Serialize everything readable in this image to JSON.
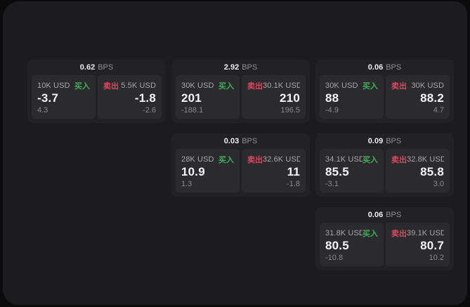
{
  "labels": {
    "bps": "BPS",
    "buy": "买入",
    "sell": "卖出"
  },
  "colors": {
    "buy": "#3cae5c",
    "sell": "#dd4760",
    "window_bg": "#1c1c1e",
    "card_bg": "#222224",
    "panel_bg": "#2b2b2d"
  },
  "cards": [
    {
      "bps": "0.62",
      "buy": {
        "amount": "10K USD",
        "value": "-3.7",
        "sub": "4.3"
      },
      "sell": {
        "amount": "5.5K USD",
        "value": "-1.8",
        "sub": "-2.6"
      }
    },
    {
      "bps": "2.92",
      "buy": {
        "amount": "30K USD",
        "value": "201",
        "sub": "-188.1"
      },
      "sell": {
        "amount": "30.1K USD",
        "value": "210",
        "sub": "196.5"
      }
    },
    {
      "bps": "0.03",
      "buy": {
        "amount": "28K USD",
        "value": "10.9",
        "sub": "1.3"
      },
      "sell": {
        "amount": "32.6K USD",
        "value": "11",
        "sub": "-1.8"
      }
    },
    {
      "bps": "0.06",
      "buy": {
        "amount": "30K USD",
        "value": "88",
        "sub": "-4.9"
      },
      "sell": {
        "amount": "30K USD",
        "value": "88.2",
        "sub": "4.7"
      }
    },
    {
      "bps": "0.09",
      "buy": {
        "amount": "34.1K USD",
        "value": "85.5",
        "sub": "-3.1"
      },
      "sell": {
        "amount": "32.8K USD",
        "value": "85.8",
        "sub": "3.0"
      }
    },
    {
      "bps": "0.06",
      "buy": {
        "amount": "31.8K USD",
        "value": "80.5",
        "sub": "-10.8"
      },
      "sell": {
        "amount": "39.1K USD",
        "value": "80.7",
        "sub": "10.2"
      }
    }
  ]
}
